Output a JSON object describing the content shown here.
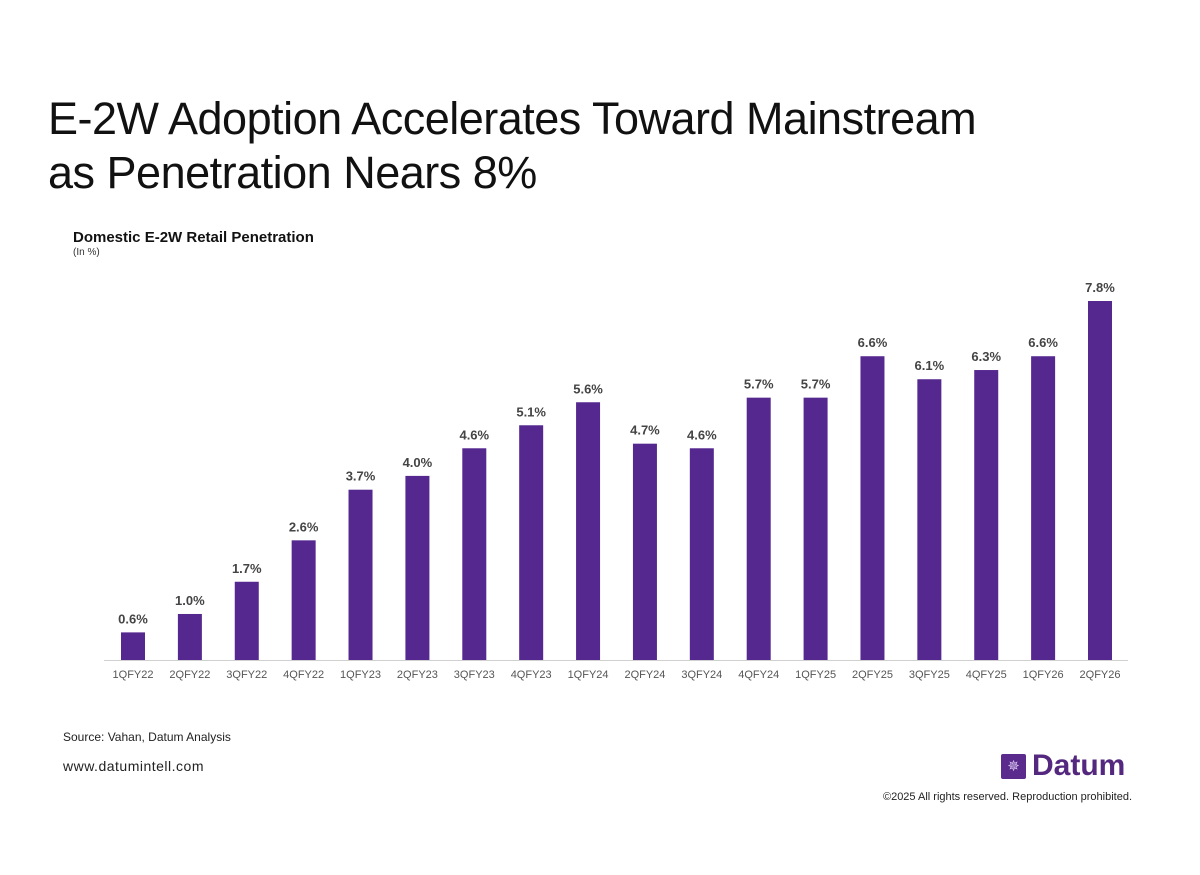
{
  "title_lines": [
    "E-2W Adoption Accelerates Toward Mainstream",
    "as Penetration Nears 8%"
  ],
  "chart_data": {
    "type": "bar",
    "title": "Domestic E-2W Retail Penetration",
    "subtitle": "(In %)",
    "categories": [
      "1QFY22",
      "2QFY22",
      "3QFY22",
      "4QFY22",
      "1QFY23",
      "2QFY23",
      "3QFY23",
      "4QFY23",
      "1QFY24",
      "2QFY24",
      "3QFY24",
      "4QFY24",
      "1QFY25",
      "2QFY25",
      "3QFY25",
      "4QFY25",
      "1QFY26",
      "2QFY26"
    ],
    "values": [
      0.6,
      1.0,
      1.7,
      2.6,
      3.7,
      4.0,
      4.6,
      5.1,
      5.6,
      4.7,
      4.6,
      5.7,
      5.7,
      6.6,
      6.1,
      6.3,
      6.6,
      7.8
    ],
    "data_label_suffix": "%",
    "ylim": [
      0,
      7.8
    ],
    "grid": false,
    "bar_color": "#55288f"
  },
  "footer": {
    "source": "Source: Vahan, Datum Analysis",
    "url": "www.datumintell.com",
    "brand": "Datum",
    "copyright": "©2025 All rights reserved. Reproduction prohibited."
  }
}
